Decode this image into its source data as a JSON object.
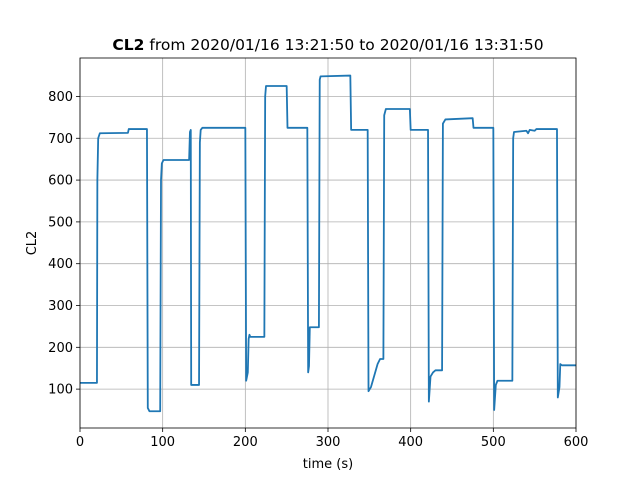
{
  "chart_data": {
    "type": "line",
    "title": [
      "CL2",
      "from 2020/01/16 13:21:50 to 2020/01/16 13:31:50"
    ],
    "x_label": "time (s)",
    "y_label": "CL2",
    "color": "#1f77b4",
    "grid": true,
    "xlim": [
      0,
      600
    ],
    "xticks": [
      0,
      100,
      200,
      300,
      400,
      500,
      600
    ],
    "ylim": [
      7,
      892
    ],
    "yticks": [
      100,
      200,
      300,
      400,
      500,
      600,
      700,
      800
    ],
    "x": [
      0,
      20.5,
      21,
      22,
      24,
      58,
      59,
      81,
      82,
      84,
      97,
      98,
      99,
      101,
      132,
      133,
      134,
      134.5,
      144,
      145,
      146,
      148,
      200,
      201,
      203,
      204,
      205,
      206,
      223,
      224,
      225,
      250,
      251,
      275,
      276,
      277,
      278,
      289,
      290,
      291,
      327,
      328,
      348,
      349,
      352,
      360,
      363,
      367,
      368,
      370,
      399,
      400,
      421,
      422,
      424,
      427,
      430,
      438,
      439,
      442,
      475,
      476,
      500,
      501,
      503,
      505,
      523,
      524,
      525,
      540,
      542,
      544,
      550,
      552,
      577,
      578,
      580,
      581,
      583,
      600
    ],
    "values": [
      115,
      115,
      600,
      700,
      712,
      713,
      722,
      722,
      55,
      47,
      47,
      600,
      640,
      648,
      648,
      715,
      720,
      110,
      110,
      690,
      720,
      725,
      725,
      120,
      140,
      220,
      230,
      225,
      225,
      800,
      825,
      825,
      725,
      725,
      140,
      155,
      248,
      248,
      840,
      848,
      850,
      720,
      720,
      95,
      105,
      160,
      172,
      172,
      755,
      770,
      770,
      720,
      720,
      70,
      130,
      140,
      145,
      145,
      735,
      745,
      748,
      725,
      725,
      50,
      110,
      120,
      120,
      700,
      715,
      718,
      712,
      720,
      718,
      722,
      722,
      80,
      105,
      160,
      157,
      157
    ]
  }
}
